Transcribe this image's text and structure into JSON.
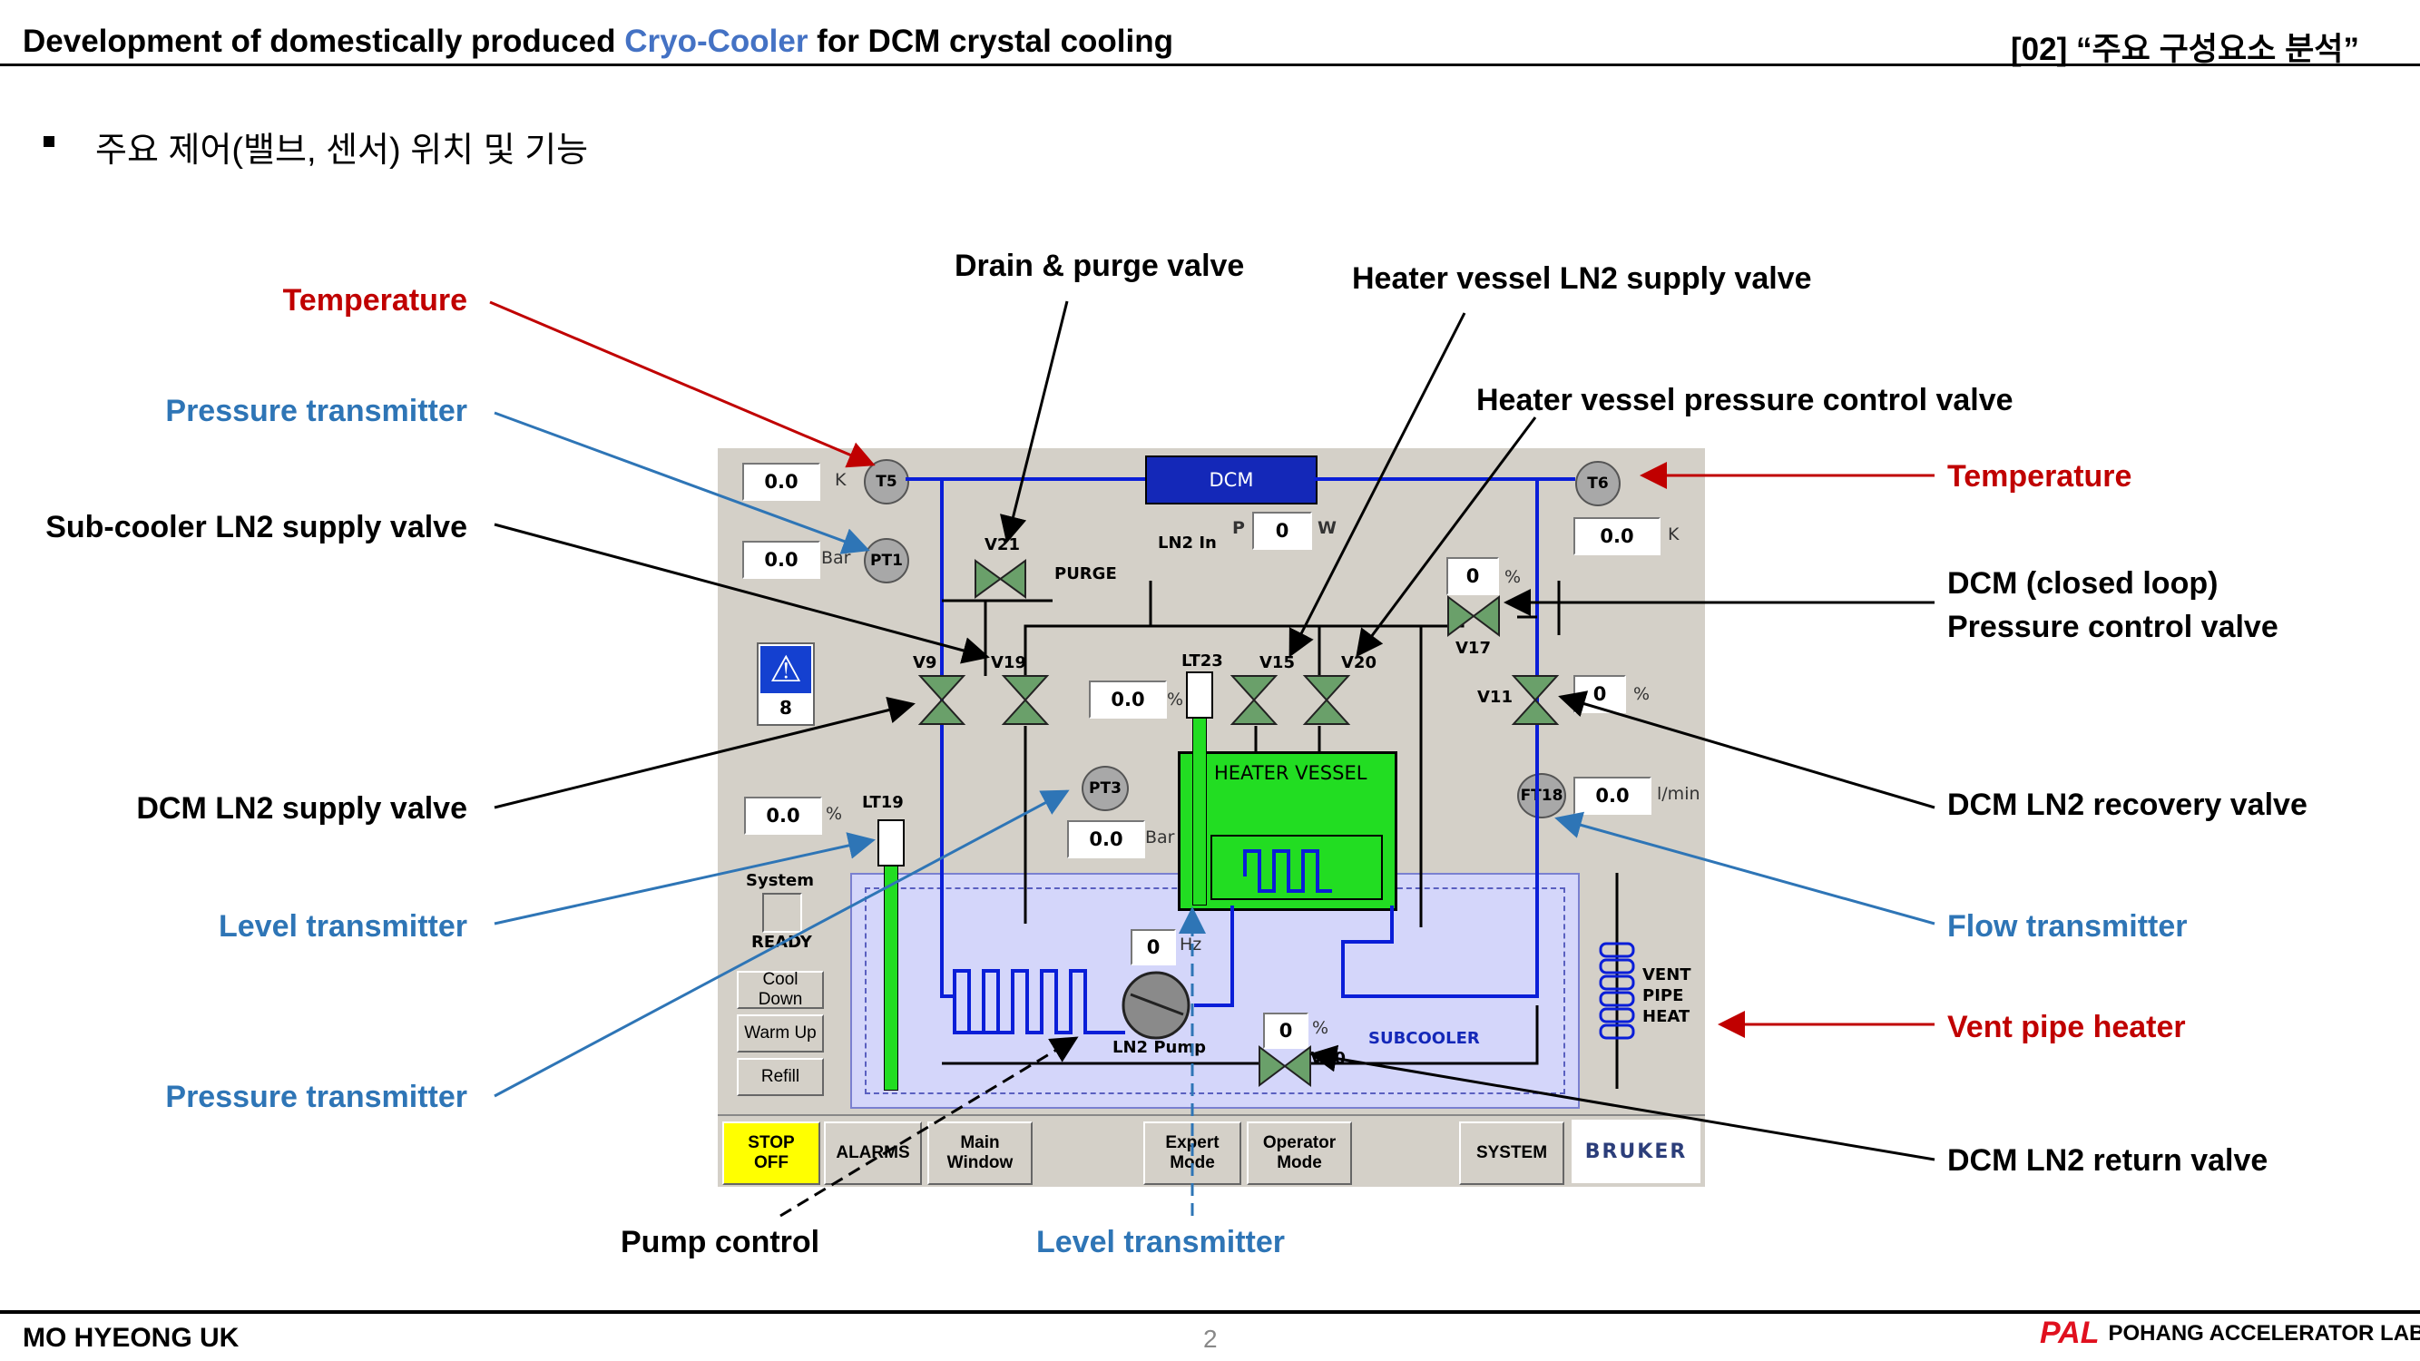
{
  "header": {
    "title_prefix": "Development of domestically produced ",
    "title_highlight": "Cryo-Cooler",
    "title_suffix": " for DCM crystal cooling",
    "section": "[02] “주요 구성요소 분석”"
  },
  "bullet_text": "주요 제어(밸브, 센서) 위치 및 기능",
  "callouts": {
    "temperature_left": "Temperature",
    "pressure_transmitter_top": "Pressure transmitter",
    "subcooler_ln2_supply_valve": "Sub-cooler LN2 supply valve",
    "dcm_ln2_supply_valve": "DCM LN2 supply valve",
    "level_transmitter_left": "Level transmitter",
    "pressure_transmitter_bottom": "Pressure transmitter",
    "drain_purge_valve": "Drain & purge valve",
    "heater_vessel_ln2_supply_valve": "Heater vessel LN2 supply valve",
    "heater_vessel_pressure_control_valve": "Heater vessel pressure control valve",
    "temperature_right": "Temperature",
    "dcm_pressure_control_line1": "DCM (closed loop)",
    "dcm_pressure_control_line2": "Pressure control valve",
    "dcm_ln2_recovery_valve": "DCM LN2 recovery valve",
    "flow_transmitter": "Flow transmitter",
    "vent_pipe_heater": "Vent pipe heater",
    "dcm_ln2_return_valve": "DCM LN2 return valve",
    "pump_control": "Pump control",
    "level_transmitter_bottom": "Level transmitter"
  },
  "hmi": {
    "dcm_label": "DCM",
    "t5": {
      "tag": "T5",
      "value": "0.0",
      "unit": "K"
    },
    "pt1": {
      "tag": "PT1",
      "value": "0.0",
      "unit": "Bar"
    },
    "t6": {
      "tag": "T6",
      "value": "0.0",
      "unit": "K"
    },
    "power": {
      "label": "P",
      "value": "0",
      "unit": "W"
    },
    "v21": "V21",
    "purge": "PURGE",
    "ln2_in": "LN2 In",
    "v9": "V9",
    "v19": "V19",
    "v15": "V15",
    "v20": "V20",
    "v17": "V17",
    "v11": "V11",
    "v10": "V10",
    "v17_value": "0",
    "v17_unit": "%",
    "v11_value": "0",
    "v11_unit": "%",
    "v10_value": "0",
    "v10_unit": "%",
    "lt23": {
      "tag": "LT23",
      "value": "0.0",
      "unit": "%"
    },
    "lt19": {
      "tag": "LT19",
      "value": "0.0",
      "unit": "%"
    },
    "pt3": {
      "tag": "PT3",
      "value": "0.0",
      "unit": "Bar"
    },
    "ft18": {
      "tag": "FT18",
      "value": "0.0",
      "unit": "l/min"
    },
    "pump": {
      "value": "0",
      "unit": "Hz",
      "label": "LN2 Pump"
    },
    "heater_vessel": "HEATER VESSEL",
    "subcooler": "SUBCOOLER",
    "vent_pipe_heat": [
      "VENT",
      "PIPE",
      "HEAT"
    ],
    "alarm_count": "8",
    "system_label": "System",
    "system_state": "READY",
    "buttons_side": [
      "Cool Down",
      "Warm Up",
      "Refill"
    ],
    "stop_button": [
      "STOP",
      "OFF"
    ],
    "bottom_buttons": {
      "alarms": "ALARMS",
      "main_window": [
        "Main",
        "Window"
      ],
      "expert_mode": [
        "Expert",
        "Mode"
      ],
      "operator_mode": [
        "Operator",
        "Mode"
      ],
      "system": "SYSTEM"
    },
    "logo": "BRUKER"
  },
  "footer": {
    "author": "MO HYEONG UK",
    "page_number": "2",
    "org_logo": "PAL",
    "org_name": "POHANG ACCELERATOR LABORATORY"
  },
  "colors": {
    "accent_blue": "#2e75b6",
    "accent_red": "#c00000",
    "title_highlight": "#4472c4",
    "hmi_background": "#d4d0c8",
    "pipe_blue": "#0a1ed8",
    "heater_green": "#22dd22",
    "subcooler_fill": "#d4d6fa",
    "stop_yellow": "#ffff00"
  }
}
